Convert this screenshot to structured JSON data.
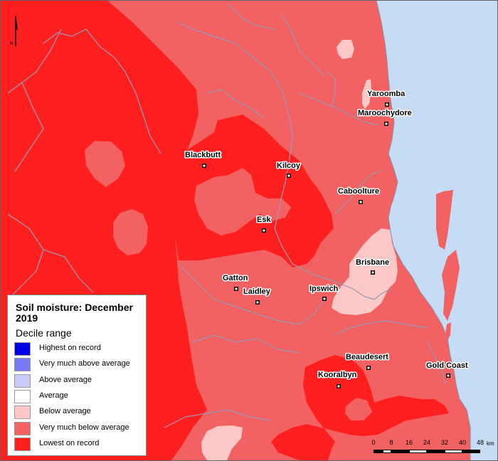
{
  "colors": {
    "ocean": "#c6dcf5",
    "lowest_on_record": "#ff1f1f",
    "very_much_below": "#f26262",
    "below_average": "#fcc8c8",
    "rivers": "#9898b8",
    "marker": "#000000"
  },
  "legend": {
    "title": "Soil moisture: December 2019",
    "subtitle": "Decile range",
    "items": [
      {
        "label": "Highest on record",
        "color": "#0000e6"
      },
      {
        "label": "Very much above average",
        "color": "#7878f5"
      },
      {
        "label": "Above average",
        "color": "#cacaf8"
      },
      {
        "label": "Average",
        "color": "#ffffff"
      },
      {
        "label": "Below average",
        "color": "#fcc8c8"
      },
      {
        "label": "Very much below average",
        "color": "#f26262"
      },
      {
        "label": "Lowest on record",
        "color": "#ff1f1f"
      }
    ]
  },
  "towns": {
    "yaroomba": "Yaroomba",
    "maroochydore": "Maroochydore",
    "blackbutt": "Blackbutt",
    "kilcoy": "Kilcoy",
    "caboolture": "Caboolture",
    "esk": "Esk",
    "brisbane": "Brisbane",
    "gatton": "Gatton",
    "laidley": "Laidley",
    "ipswich": "Ipswich",
    "beaudesert": "Beaudesert",
    "gold_coast": "Gold Coast",
    "kooralbyn": "Kooralbyn"
  },
  "north_arrow": {
    "label": "N"
  },
  "scale_bar": {
    "ticks": [
      "0",
      "8",
      "16",
      "24",
      "32",
      "40",
      "48"
    ],
    "unit": "km"
  }
}
